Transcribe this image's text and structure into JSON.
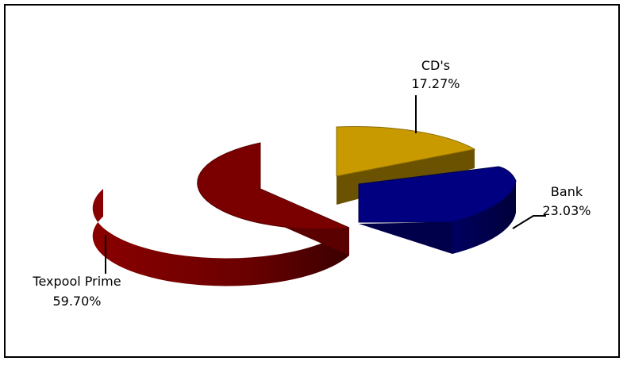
{
  "chart_data": {
    "type": "pie",
    "title": "",
    "style": "3d-exploded",
    "slices": [
      {
        "label": "Texpool Prime",
        "value": 59.7,
        "pct_label": "59.70%",
        "color": "#7a0000"
      },
      {
        "label": "CD's",
        "value": 17.27,
        "pct_label": "17.27%",
        "color": "#c89a00"
      },
      {
        "label": "Bank",
        "value": 23.03,
        "pct_label": "23.03%",
        "color": "#000080"
      }
    ]
  }
}
